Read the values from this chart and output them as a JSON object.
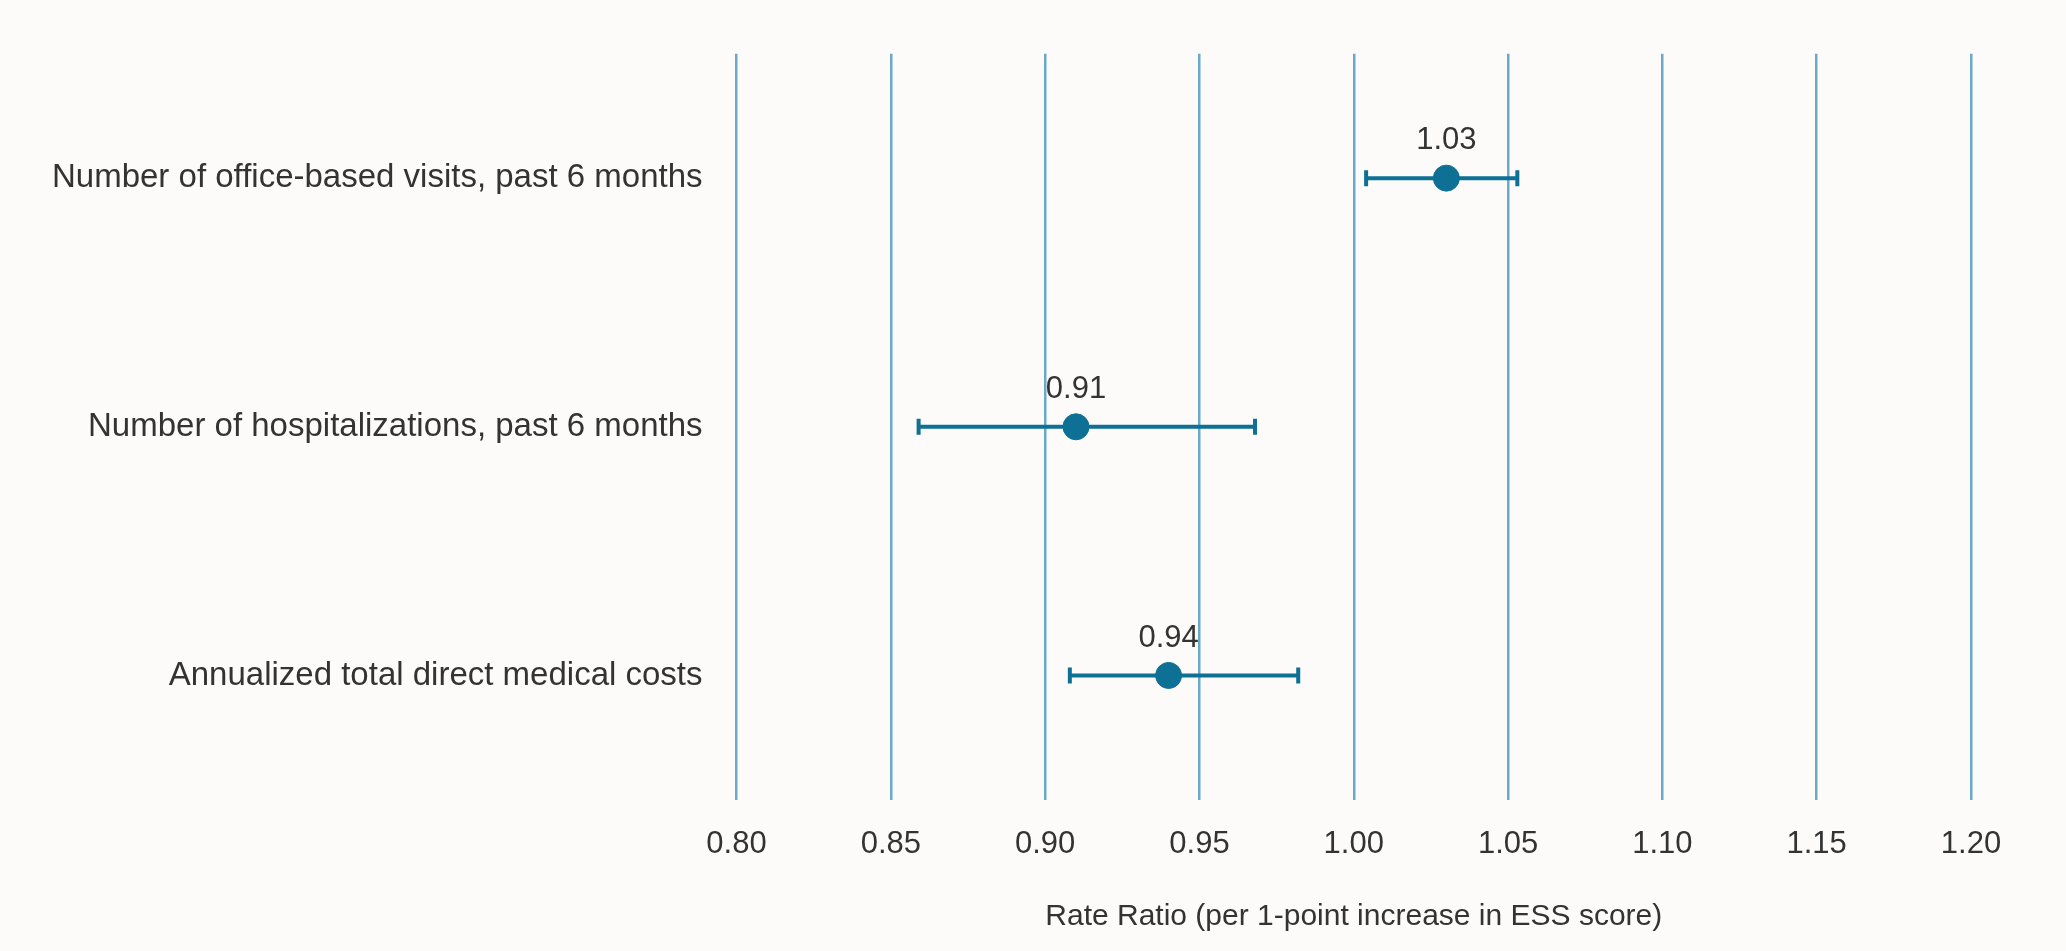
{
  "chart_data": {
    "type": "scatter",
    "orientation": "horizontal",
    "xlabel": "Rate Ratio (per 1-point increase in ESS score)",
    "categories": [
      "Number of office-based visits, past 6 months",
      "Number of hospitalizations, past 6 months",
      "Annualized total direct medical costs"
    ],
    "values": [
      1.03,
      0.91,
      0.94
    ],
    "errors": [
      [
        1.004,
        1.053
      ],
      [
        0.859,
        0.968
      ],
      [
        0.908,
        0.982
      ]
    ],
    "color": "#0e7094",
    "marker": "circle",
    "data_labels": true,
    "grid": "x",
    "legend": false,
    "xlim": [
      0.8,
      1.2
    ],
    "xticks": [
      {
        "value": 0.8,
        "label": "0.80"
      },
      0.85,
      {
        "value": 0.9,
        "label": "0.90"
      },
      0.95,
      {
        "value": 1.0,
        "label": "1.00"
      },
      1.05,
      {
        "value": 1.1,
        "label": "1.10"
      },
      1.15,
      {
        "value": 1.2,
        "label": "1.20"
      }
    ]
  }
}
